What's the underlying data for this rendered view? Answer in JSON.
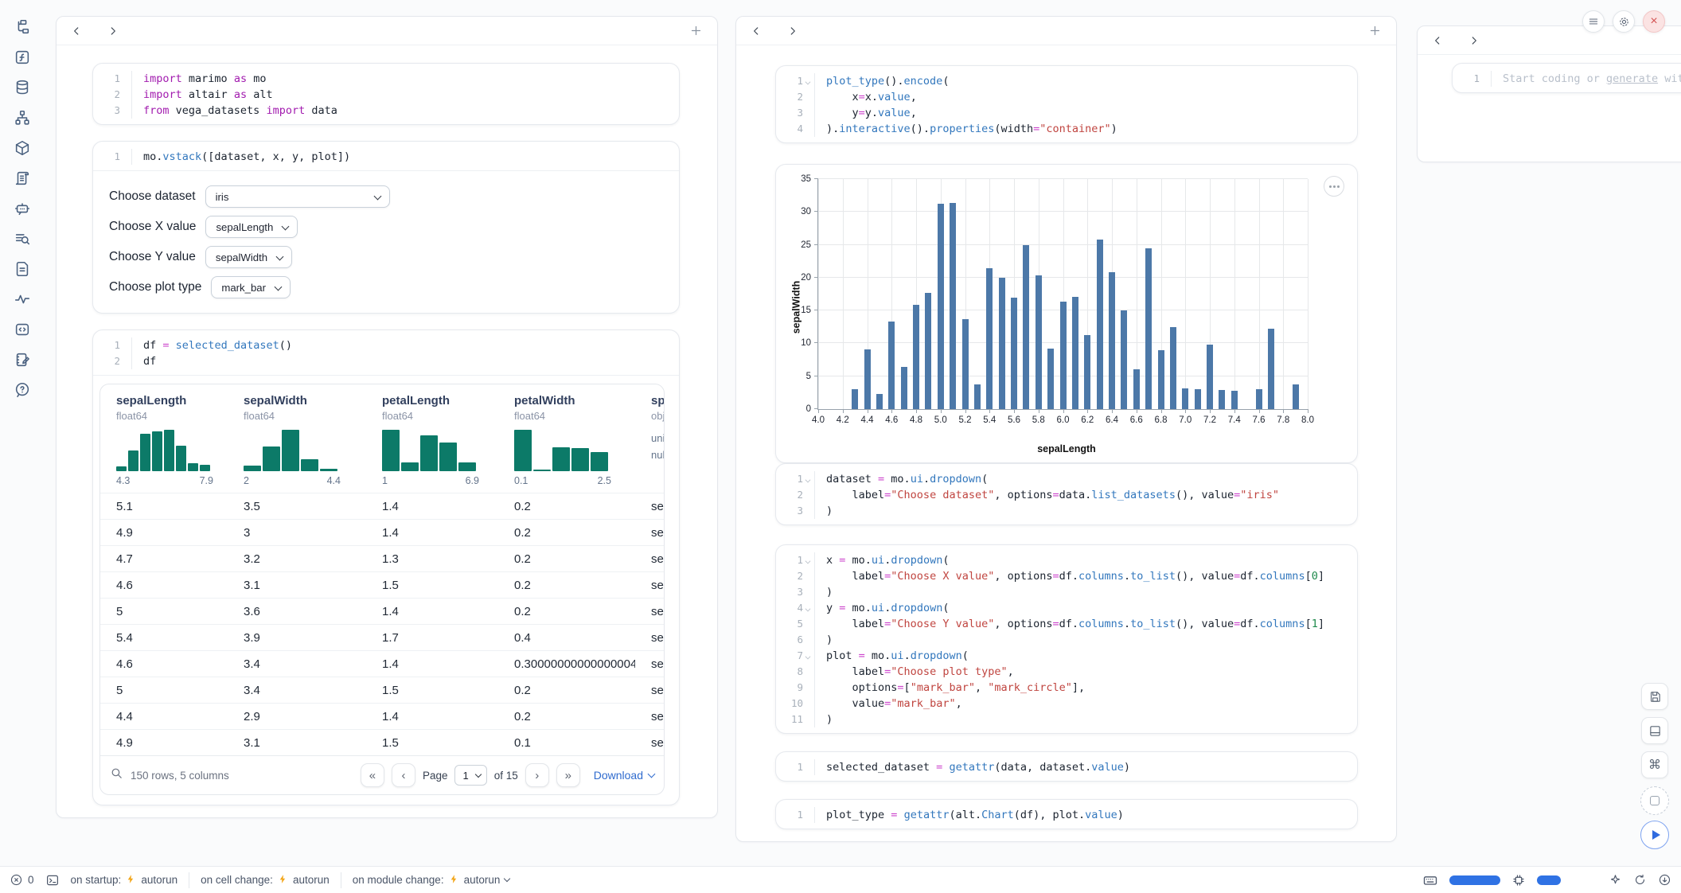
{
  "colors": {
    "accent_blue": "#2f6bce",
    "bar_blue": "#4c78a8",
    "hist_teal": "#0c7a68",
    "keyword_magenta": "#a21caf",
    "string_red": "#c04540",
    "function_blue": "#3277bd",
    "number_green": "#1f8a4c",
    "close_red": "#d35454",
    "lightning_amber": "#f2a516",
    "meter_blue": "#2f72e4"
  },
  "sidebar": {
    "icons": [
      "file-explorer",
      "functions",
      "datasources",
      "dependency-graph",
      "packages",
      "logs",
      "chat",
      "tracing",
      "documentation",
      "variables",
      "snippets",
      "scratchpad",
      "help"
    ]
  },
  "left_panel": {
    "cells": {
      "imports": {
        "lines": [
          [
            [
              "kw",
              "import"
            ],
            [
              "pl",
              " marimo "
            ],
            [
              "kw",
              "as"
            ],
            [
              "pl",
              " mo"
            ]
          ],
          [
            [
              "kw",
              "import"
            ],
            [
              "pl",
              " altair "
            ],
            [
              "kw",
              "as"
            ],
            [
              "pl",
              " alt"
            ]
          ],
          [
            [
              "kw",
              "from"
            ],
            [
              "pl",
              " vega_datasets "
            ],
            [
              "kw",
              "import"
            ],
            [
              "pl",
              " data"
            ]
          ]
        ]
      },
      "vstack": {
        "lines": [
          [
            [
              "pl",
              "mo."
            ],
            [
              "fn",
              "vstack"
            ],
            [
              "pl",
              "([dataset, x, y, plot])"
            ]
          ]
        ]
      },
      "df": {
        "lines": [
          [
            [
              "pl",
              "df "
            ],
            [
              "op",
              "="
            ],
            [
              "pl",
              " "
            ],
            [
              "fn",
              "selected_dataset"
            ],
            [
              "pl",
              "()"
            ]
          ],
          [
            [
              "pl",
              "df"
            ]
          ]
        ]
      }
    },
    "controls": [
      {
        "label": "Choose dataset",
        "value": "iris"
      },
      {
        "label": "Choose X value",
        "value": "sepalLength"
      },
      {
        "label": "Choose Y value",
        "value": "sepalWidth"
      },
      {
        "label": "Choose plot type",
        "value": "mark_bar"
      }
    ],
    "table": {
      "columns": [
        {
          "name": "sepalLength",
          "dtype": "float64",
          "min": "4.3",
          "max": "7.9"
        },
        {
          "name": "sepalWidth",
          "dtype": "float64",
          "min": "2",
          "max": "4.4"
        },
        {
          "name": "petalLength",
          "dtype": "float64",
          "min": "1",
          "max": "6.9"
        },
        {
          "name": "petalWidth",
          "dtype": "float64",
          "min": "0.1",
          "max": "2.5"
        },
        {
          "name": "species",
          "dtype": "object",
          "stat1": "unique:",
          "stat2": "nulls:"
        }
      ],
      "rows": [
        [
          "5.1",
          "3.5",
          "1.4",
          "0.2",
          "setosa"
        ],
        [
          "4.9",
          "3",
          "1.4",
          "0.2",
          "setosa"
        ],
        [
          "4.7",
          "3.2",
          "1.3",
          "0.2",
          "setosa"
        ],
        [
          "4.6",
          "3.1",
          "1.5",
          "0.2",
          "setosa"
        ],
        [
          "5",
          "3.6",
          "1.4",
          "0.2",
          "setosa"
        ],
        [
          "5.4",
          "3.9",
          "1.7",
          "0.4",
          "setosa"
        ],
        [
          "4.6",
          "3.4",
          "1.4",
          "0.30000000000000004",
          "setosa"
        ],
        [
          "5",
          "3.4",
          "1.5",
          "0.2",
          "setosa"
        ],
        [
          "4.4",
          "2.9",
          "1.4",
          "0.2",
          "setosa"
        ],
        [
          "4.9",
          "3.1",
          "1.5",
          "0.1",
          "setosa"
        ]
      ],
      "footer": {
        "summary": "150 rows, 5 columns",
        "page_label": "Page",
        "page": "1",
        "of": "of 15",
        "download": "Download"
      }
    }
  },
  "middle_panel": {
    "cells": {
      "plot": {
        "folds": [
          1
        ],
        "lines": [
          [
            [
              "fn",
              "plot_type"
            ],
            [
              "pl",
              "()."
            ],
            [
              "fn",
              "encode"
            ],
            [
              "pl",
              "("
            ]
          ],
          [
            [
              "pl",
              "    x"
            ],
            [
              "op",
              "="
            ],
            [
              "pl",
              "x."
            ],
            [
              "fn",
              "value"
            ],
            [
              "pl",
              ","
            ]
          ],
          [
            [
              "pl",
              "    y"
            ],
            [
              "op",
              "="
            ],
            [
              "pl",
              "y."
            ],
            [
              "fn",
              "value"
            ],
            [
              "pl",
              ","
            ]
          ],
          [
            [
              "pl",
              ")."
            ],
            [
              "fn",
              "interactive"
            ],
            [
              "pl",
              "()."
            ],
            [
              "fn",
              "properties"
            ],
            [
              "pl",
              "(width"
            ],
            [
              "op",
              "="
            ],
            [
              "str",
              "\"container\""
            ],
            [
              "pl",
              ")"
            ]
          ]
        ]
      },
      "dataset": {
        "folds": [
          1
        ],
        "lines": [
          [
            [
              "pl",
              "dataset "
            ],
            [
              "op",
              "="
            ],
            [
              "pl",
              " mo."
            ],
            [
              "fn",
              "ui"
            ],
            [
              "pl",
              "."
            ],
            [
              "fn",
              "dropdown"
            ],
            [
              "pl",
              "("
            ]
          ],
          [
            [
              "pl",
              "    label"
            ],
            [
              "op",
              "="
            ],
            [
              "str",
              "\"Choose dataset\""
            ],
            [
              "pl",
              ", options"
            ],
            [
              "op",
              "="
            ],
            [
              "pl",
              "data."
            ],
            [
              "fn",
              "list_datasets"
            ],
            [
              "pl",
              "(), value"
            ],
            [
              "op",
              "="
            ],
            [
              "str",
              "\"iris\""
            ]
          ],
          [
            [
              "pl",
              ")"
            ]
          ]
        ]
      },
      "xyplot": {
        "folds": [
          1,
          4,
          7
        ],
        "lines": [
          [
            [
              "pl",
              "x "
            ],
            [
              "op",
              "="
            ],
            [
              "pl",
              " mo."
            ],
            [
              "fn",
              "ui"
            ],
            [
              "pl",
              "."
            ],
            [
              "fn",
              "dropdown"
            ],
            [
              "pl",
              "("
            ]
          ],
          [
            [
              "pl",
              "    label"
            ],
            [
              "op",
              "="
            ],
            [
              "str",
              "\"Choose X value\""
            ],
            [
              "pl",
              ", options"
            ],
            [
              "op",
              "="
            ],
            [
              "pl",
              "df."
            ],
            [
              "fn",
              "columns"
            ],
            [
              "pl",
              "."
            ],
            [
              "fn",
              "to_list"
            ],
            [
              "pl",
              "(), value"
            ],
            [
              "op",
              "="
            ],
            [
              "pl",
              "df."
            ],
            [
              "fn",
              "columns"
            ],
            [
              "pl",
              "["
            ],
            [
              "num",
              "0"
            ],
            [
              "pl",
              "]"
            ]
          ],
          [
            [
              "pl",
              ")"
            ]
          ],
          [
            [
              "pl",
              "y "
            ],
            [
              "op",
              "="
            ],
            [
              "pl",
              " mo."
            ],
            [
              "fn",
              "ui"
            ],
            [
              "pl",
              "."
            ],
            [
              "fn",
              "dropdown"
            ],
            [
              "pl",
              "("
            ]
          ],
          [
            [
              "pl",
              "    label"
            ],
            [
              "op",
              "="
            ],
            [
              "str",
              "\"Choose Y value\""
            ],
            [
              "pl",
              ", options"
            ],
            [
              "op",
              "="
            ],
            [
              "pl",
              "df."
            ],
            [
              "fn",
              "columns"
            ],
            [
              "pl",
              "."
            ],
            [
              "fn",
              "to_list"
            ],
            [
              "pl",
              "(), value"
            ],
            [
              "op",
              "="
            ],
            [
              "pl",
              "df."
            ],
            [
              "fn",
              "columns"
            ],
            [
              "pl",
              "["
            ],
            [
              "num",
              "1"
            ],
            [
              "pl",
              "]"
            ]
          ],
          [
            [
              "pl",
              ")"
            ]
          ],
          [
            [
              "pl",
              "plot "
            ],
            [
              "op",
              "="
            ],
            [
              "pl",
              " mo."
            ],
            [
              "fn",
              "ui"
            ],
            [
              "pl",
              "."
            ],
            [
              "fn",
              "dropdown"
            ],
            [
              "pl",
              "("
            ]
          ],
          [
            [
              "pl",
              "    label"
            ],
            [
              "op",
              "="
            ],
            [
              "str",
              "\"Choose plot type\""
            ],
            [
              "pl",
              ","
            ]
          ],
          [
            [
              "pl",
              "    options"
            ],
            [
              "op",
              "="
            ],
            [
              "pl",
              "["
            ],
            [
              "str",
              "\"mark_bar\""
            ],
            [
              "pl",
              ", "
            ],
            [
              "str",
              "\"mark_circle\""
            ],
            [
              "pl",
              "],"
            ]
          ],
          [
            [
              "pl",
              "    value"
            ],
            [
              "op",
              "="
            ],
            [
              "str",
              "\"mark_bar\""
            ],
            [
              "pl",
              ","
            ]
          ],
          [
            [
              "pl",
              ")"
            ]
          ]
        ]
      },
      "selected": {
        "lines": [
          [
            [
              "pl",
              "selected_dataset "
            ],
            [
              "op",
              "="
            ],
            [
              "pl",
              " "
            ],
            [
              "fn",
              "getattr"
            ],
            [
              "pl",
              "(data, dataset."
            ],
            [
              "fn",
              "value"
            ],
            [
              "pl",
              ")"
            ]
          ]
        ]
      },
      "ptype": {
        "lines": [
          [
            [
              "pl",
              "plot_type "
            ],
            [
              "op",
              "="
            ],
            [
              "pl",
              " "
            ],
            [
              "fn",
              "getattr"
            ],
            [
              "pl",
              "(alt."
            ],
            [
              "fn",
              "Chart"
            ],
            [
              "pl",
              "(df), plot."
            ],
            [
              "fn",
              "value"
            ],
            [
              "pl",
              ")"
            ]
          ]
        ]
      }
    }
  },
  "right_panel": {
    "cell": {
      "lines": [
        [
          [
            "ph",
            "Start coding or "
          ],
          [
            "phu",
            "generate"
          ],
          [
            "ph",
            " with"
          ]
        ]
      ]
    }
  },
  "chart_data": [
    {
      "type": "bar",
      "title": "",
      "xlabel": "sepalLength",
      "ylabel": "sepalWidth",
      "xlim": [
        4,
        8
      ],
      "ylim": [
        0,
        35
      ],
      "grid": true,
      "bar_color": "#4c78a8",
      "xticks": [
        "4.0",
        "4.2",
        "4.4",
        "4.6",
        "4.8",
        "5.0",
        "5.2",
        "5.4",
        "5.6",
        "5.8",
        "6.0",
        "6.2",
        "6.4",
        "6.6",
        "6.8",
        "7.0",
        "7.2",
        "7.4",
        "7.6",
        "7.8",
        "8.0"
      ],
      "yticks": [
        "0",
        "5",
        "10",
        "15",
        "20",
        "25",
        "30",
        "35"
      ],
      "values": [
        [
          4.3,
          3.0
        ],
        [
          4.4,
          9.1
        ],
        [
          4.5,
          2.3
        ],
        [
          4.6,
          13.3
        ],
        [
          4.7,
          6.4
        ],
        [
          4.8,
          15.9
        ],
        [
          4.9,
          17.7
        ],
        [
          5.0,
          31.2
        ],
        [
          5.1,
          31.4
        ],
        [
          5.2,
          13.7
        ],
        [
          5.3,
          3.7
        ],
        [
          5.4,
          21.4
        ],
        [
          5.5,
          20.0
        ],
        [
          5.6,
          16.9
        ],
        [
          5.7,
          24.9
        ],
        [
          5.8,
          20.3
        ],
        [
          5.9,
          9.2
        ],
        [
          6.0,
          16.4
        ],
        [
          6.1,
          17.1
        ],
        [
          6.2,
          11.3
        ],
        [
          6.3,
          25.8
        ],
        [
          6.4,
          20.8
        ],
        [
          6.5,
          15.0
        ],
        [
          6.6,
          6.0
        ],
        [
          6.7,
          24.5
        ],
        [
          6.8,
          9.0
        ],
        [
          6.9,
          12.5
        ],
        [
          7.0,
          3.2
        ],
        [
          7.1,
          3.0
        ],
        [
          7.2,
          9.8
        ],
        [
          7.3,
          2.9
        ],
        [
          7.4,
          2.8
        ],
        [
          7.6,
          3.0
        ],
        [
          7.7,
          12.2
        ],
        [
          7.9,
          3.8
        ]
      ]
    },
    {
      "type": "histogram",
      "column": "sepalLength",
      "range": [
        4.3,
        7.9
      ],
      "counts": [
        4,
        16,
        29,
        31,
        32,
        20,
        6,
        5
      ]
    },
    {
      "type": "histogram",
      "column": "sepalWidth",
      "range": [
        2,
        4.4
      ],
      "counts": [
        10,
        43,
        72,
        21,
        4
      ]
    },
    {
      "type": "histogram",
      "column": "petalLength",
      "range": [
        1,
        6.9
      ],
      "counts": [
        50,
        11,
        43,
        35,
        11
      ]
    },
    {
      "type": "histogram",
      "column": "petalWidth",
      "range": [
        0.1,
        2.5
      ],
      "counts": [
        57,
        2,
        33,
        32,
        26
      ]
    }
  ],
  "statusbar": {
    "error_count": "0",
    "groups": [
      {
        "label": "on startup:",
        "value": "autorun"
      },
      {
        "label": "on cell change:",
        "value": "autorun"
      },
      {
        "label": "on module change:",
        "value": "autorun"
      }
    ]
  }
}
